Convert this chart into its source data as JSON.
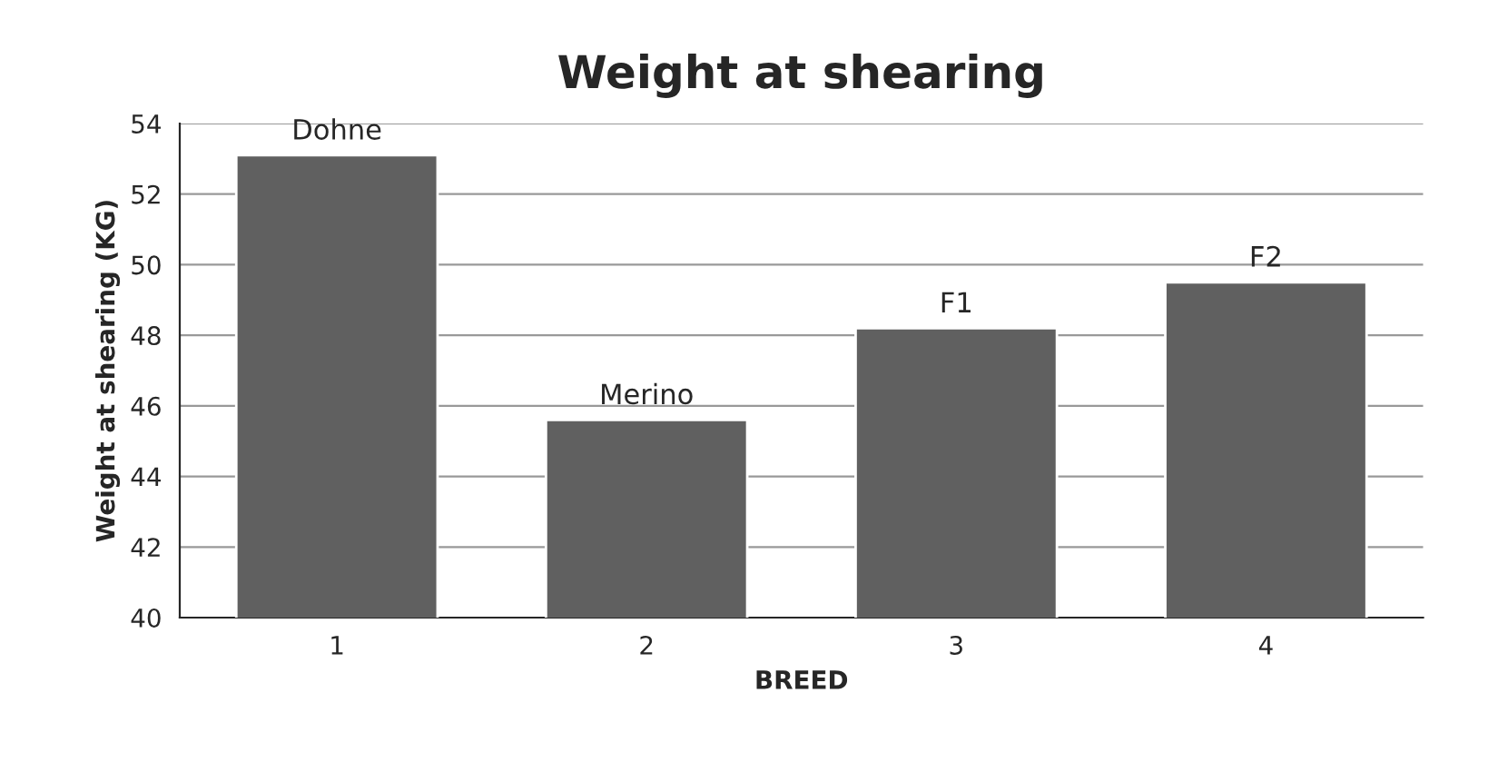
{
  "chart_data": {
    "type": "bar",
    "title": "Weight at shearing",
    "xlabel": "BREED",
    "ylabel": "Weight at shearing (KG)",
    "categories": [
      "1",
      "2",
      "3",
      "4"
    ],
    "values": [
      53.1,
      45.6,
      48.2,
      49.5
    ],
    "color": "#606060",
    "ylim": [
      40,
      54
    ],
    "yticks": [
      40,
      42,
      44,
      46,
      48,
      50,
      52,
      54
    ],
    "grid": "y",
    "annotations": [
      {
        "text": "Dohne",
        "x": "1",
        "y": 53.1
      },
      {
        "text": "Merino",
        "x": "2",
        "y": 45.6
      },
      {
        "text": "F1",
        "x": "3",
        "y": 48.2
      },
      {
        "text": "F2",
        "x": "4",
        "y": 49.5
      }
    ]
  }
}
